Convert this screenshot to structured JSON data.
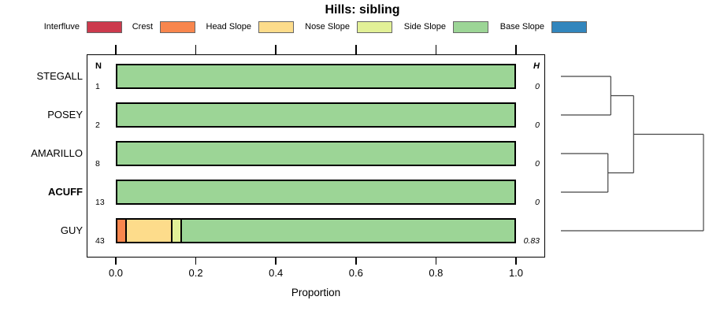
{
  "title": "Hills: sibling",
  "xlabel": "Proportion",
  "columns": {
    "n_header": "N",
    "h_header": "H"
  },
  "chart_data": {
    "type": "bar",
    "orientation": "horizontal-stacked",
    "title": "Hills: sibling",
    "xlabel": "Proportion",
    "xlim": [
      0,
      1
    ],
    "x_ticks": [
      {
        "label": "0.0",
        "value": 0.0
      },
      {
        "label": "0.2",
        "value": 0.2
      },
      {
        "label": "0.4",
        "value": 0.4
      },
      {
        "label": "0.6",
        "value": 0.6
      },
      {
        "label": "0.8",
        "value": 0.8
      },
      {
        "label": "1.0",
        "value": 1.0
      }
    ],
    "categories": [
      "STEGALL",
      "POSEY",
      "AMARILLO",
      "ACUFF",
      "GUY"
    ],
    "bold_category": "ACUFF",
    "n_values": [
      "1",
      "2",
      "8",
      "13",
      "43"
    ],
    "h_values": [
      "0",
      "0",
      "0",
      "0",
      "0.83"
    ],
    "legend_position": "top",
    "legend": [
      {
        "label": "Interfluve",
        "color": "#CC3A4D"
      },
      {
        "label": "Crest",
        "color": "#F8864D"
      },
      {
        "label": "Head Slope",
        "color": "#FDDC8B"
      },
      {
        "label": "Nose Slope",
        "color": "#E2F097"
      },
      {
        "label": "Side Slope",
        "color": "#9CD596"
      },
      {
        "label": "Base Slope",
        "color": "#3286BD"
      }
    ],
    "series": [
      {
        "name": "Interfluve",
        "values": [
          0,
          0,
          0,
          0,
          0
        ]
      },
      {
        "name": "Crest",
        "values": [
          0,
          0,
          0,
          0,
          0.023
        ]
      },
      {
        "name": "Head Slope",
        "values": [
          0,
          0,
          0,
          0,
          0.116
        ]
      },
      {
        "name": "Nose Slope",
        "values": [
          0,
          0,
          0,
          0,
          0.023
        ]
      },
      {
        "name": "Side Slope",
        "values": [
          1,
          1,
          1,
          1,
          0.837
        ]
      },
      {
        "name": "Base Slope",
        "values": [
          0,
          0,
          0,
          0,
          0
        ]
      }
    ],
    "dendrogram": {
      "merges": [
        {
          "id": "n1",
          "children": [
            "STEGALL",
            "POSEY"
          ],
          "height": 0.35
        },
        {
          "id": "n2",
          "children": [
            "AMARILLO",
            "ACUFF"
          ],
          "height": 0.33
        },
        {
          "id": "n3",
          "children": [
            "n1",
            "n2"
          ],
          "height": 0.51
        },
        {
          "id": "root",
          "children": [
            "n3",
            "GUY"
          ],
          "height": 1.0
        }
      ]
    }
  }
}
